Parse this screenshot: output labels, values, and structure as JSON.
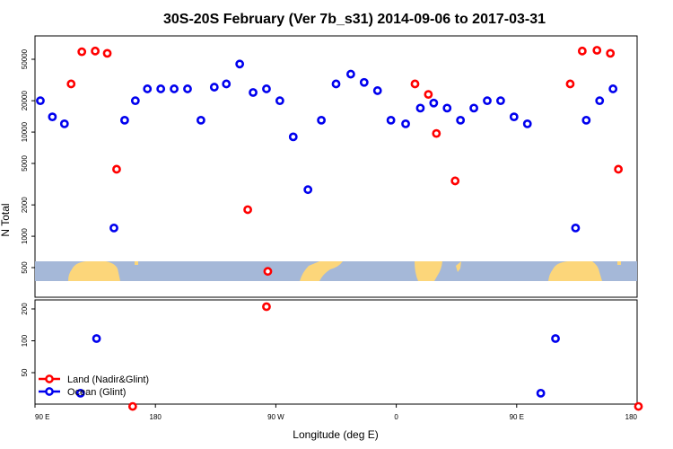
{
  "chart_data": {
    "type": "scatter",
    "title": "30S-20S February (Ver 7b_s31)   2014-09-06 to 2017-03-31",
    "xlabel": "Longitude (deg E)",
    "ylabel": "N Total",
    "y_scale": "log",
    "x_ticks": [
      {
        "value": 90,
        "label": "90 E"
      },
      {
        "value": 180,
        "label": "180"
      },
      {
        "value": 270,
        "label": "90 W"
      },
      {
        "value": 360,
        "label": "0"
      },
      {
        "value": 450,
        "label": "90 E"
      },
      {
        "value": 540,
        "label": "180"
      }
    ],
    "upper_yticks": [
      "500",
      "1000",
      "2000",
      "5000",
      "10000",
      "20000",
      "50000"
    ],
    "lower_yticks": [
      "50",
      "100",
      "200"
    ],
    "colors": {
      "land": "#ff0000",
      "ocean": "#0000ee",
      "map_ocean": "#a5b8d8",
      "map_land": "#fcd67a"
    },
    "legend": {
      "placement": "bottom-left",
      "entries": [
        "Land (Nadir&Glint)",
        "Ocean (Glint)"
      ]
    },
    "series": [
      {
        "name": "Land (Nadir&Glint)",
        "color": "#ff0000",
        "points": [
          [
            117,
            29000
          ],
          [
            125,
            59000
          ],
          [
            135,
            60000
          ],
          [
            144,
            57000
          ],
          [
            151,
            4400
          ],
          [
            163,
            24
          ],
          [
            249,
            1800
          ],
          [
            264,
            460
          ],
          [
            263,
            210
          ],
          [
            374,
            29000
          ],
          [
            384,
            23000
          ],
          [
            390,
            9700
          ],
          [
            404,
            3400
          ],
          [
            490,
            29000
          ],
          [
            499,
            60000
          ],
          [
            510,
            61000
          ],
          [
            520,
            57000
          ],
          [
            526,
            4400
          ],
          [
            541,
            24
          ]
        ]
      },
      {
        "name": "Ocean (Glint)",
        "color": "#0000ee",
        "points": [
          [
            94,
            20000
          ],
          [
            103,
            14000
          ],
          [
            112,
            12000
          ],
          [
            124,
            32
          ],
          [
            136,
            105
          ],
          [
            149,
            1200
          ],
          [
            157,
            13000
          ],
          [
            165,
            20000
          ],
          [
            174,
            26000
          ],
          [
            184,
            26000
          ],
          [
            194,
            26000
          ],
          [
            204,
            26000
          ],
          [
            214,
            13000
          ],
          [
            224,
            27000
          ],
          [
            233,
            29000
          ],
          [
            243,
            45000
          ],
          [
            253,
            24000
          ],
          [
            263,
            26000
          ],
          [
            273,
            20000
          ],
          [
            283,
            9000
          ],
          [
            294,
            2800
          ],
          [
            304,
            13000
          ],
          [
            315,
            29000
          ],
          [
            326,
            36000
          ],
          [
            336,
            30000
          ],
          [
            346,
            25000
          ],
          [
            356,
            13000
          ],
          [
            367,
            12000
          ],
          [
            378,
            17000
          ],
          [
            388,
            19000
          ],
          [
            398,
            17000
          ],
          [
            408,
            13000
          ],
          [
            418,
            17000
          ],
          [
            428,
            20000
          ],
          [
            438,
            20000
          ],
          [
            448,
            14000
          ],
          [
            458,
            12000
          ],
          [
            468,
            32
          ],
          [
            479,
            105
          ],
          [
            494,
            1200
          ],
          [
            502,
            13000
          ],
          [
            512,
            20000
          ],
          [
            522,
            26000
          ]
        ]
      }
    ]
  }
}
